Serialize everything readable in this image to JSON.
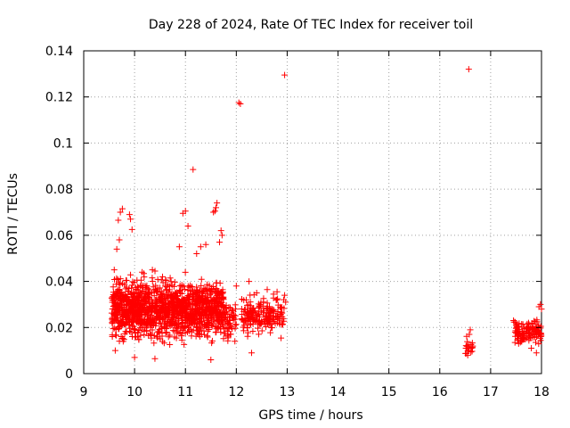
{
  "chart_data": {
    "type": "scatter",
    "title": "Day 228 of 2024, Rate Of TEC Index for receiver toil",
    "xlabel": "GPS time / hours",
    "ylabel": "ROTI / TECUs",
    "xlim": [
      9,
      18
    ],
    "ylim": [
      0,
      0.14
    ],
    "grid": true,
    "marker": "+",
    "color": "#ff0000",
    "xticks": [
      9,
      10,
      11,
      12,
      13,
      14,
      15,
      16,
      17,
      18
    ],
    "yticks": [
      0,
      0.02,
      0.04,
      0.06,
      0.08,
      0.1,
      0.12,
      0.14
    ],
    "xtick_labels": [
      "9",
      "10",
      "11",
      "12",
      "13",
      "14",
      "15",
      "16",
      "17",
      "18"
    ],
    "ytick_labels": [
      "0",
      "0.02",
      "0.04",
      "0.06",
      "0.08",
      "0.1",
      "0.12",
      "0.14"
    ],
    "clusters": [
      {
        "x_range": [
          9.55,
          11.75
        ],
        "y_center": 0.028,
        "y_spread": 0.012,
        "count": 1400
      },
      {
        "x_range": [
          11.75,
          12.0
        ],
        "y_center": 0.023,
        "y_spread": 0.008,
        "count": 60
      },
      {
        "x_range": [
          12.1,
          12.95
        ],
        "y_center": 0.025,
        "y_spread": 0.008,
        "count": 200
      },
      {
        "x_range": [
          16.5,
          16.65
        ],
        "y_center": 0.012,
        "y_spread": 0.004,
        "count": 20
      },
      {
        "x_range": [
          17.45,
          18.0
        ],
        "y_center": 0.018,
        "y_spread": 0.005,
        "count": 120
      }
    ],
    "points": [
      [
        16.57,
        0.132
      ],
      [
        12.95,
        0.1295
      ],
      [
        12.05,
        0.1175
      ],
      [
        12.08,
        0.117
      ],
      [
        11.15,
        0.0885
      ],
      [
        9.76,
        0.0715
      ],
      [
        9.72,
        0.07
      ],
      [
        9.68,
        0.0665
      ],
      [
        9.9,
        0.069
      ],
      [
        9.92,
        0.067
      ],
      [
        9.95,
        0.0625
      ],
      [
        11.0,
        0.0705
      ],
      [
        10.95,
        0.0695
      ],
      [
        11.62,
        0.074
      ],
      [
        11.6,
        0.072
      ],
      [
        11.58,
        0.0705
      ],
      [
        11.55,
        0.07
      ],
      [
        11.7,
        0.062
      ],
      [
        11.72,
        0.06
      ],
      [
        10.88,
        0.055
      ],
      [
        11.05,
        0.064
      ],
      [
        9.65,
        0.054
      ],
      [
        9.7,
        0.058
      ],
      [
        11.4,
        0.056
      ],
      [
        11.3,
        0.055
      ],
      [
        11.22,
        0.052
      ],
      [
        11.67,
        0.057
      ],
      [
        10.35,
        0.045
      ],
      [
        10.55,
        0.042
      ],
      [
        10.7,
        0.0415
      ],
      [
        12.0,
        0.038
      ],
      [
        12.25,
        0.04
      ],
      [
        12.4,
        0.035
      ],
      [
        12.95,
        0.034
      ],
      [
        12.97,
        0.031
      ],
      [
        9.6,
        0.045
      ],
      [
        9.62,
        0.01
      ],
      [
        10.0,
        0.007
      ],
      [
        10.4,
        0.0065
      ],
      [
        11.5,
        0.006
      ],
      [
        12.3,
        0.009
      ],
      [
        16.55,
        0.008
      ],
      [
        16.6,
        0.019
      ],
      [
        16.58,
        0.017
      ],
      [
        17.45,
        0.023
      ],
      [
        17.5,
        0.021
      ],
      [
        17.55,
        0.013
      ],
      [
        17.8,
        0.011
      ],
      [
        17.9,
        0.009
      ],
      [
        17.95,
        0.029
      ],
      [
        17.98,
        0.03
      ],
      [
        18.0,
        0.028
      ]
    ]
  }
}
